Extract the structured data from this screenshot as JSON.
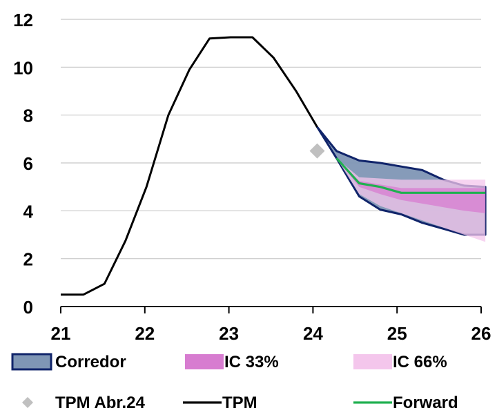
{
  "chart_data": {
    "type": "line",
    "xlim": [
      21,
      26
    ],
    "ylim": [
      0,
      12
    ],
    "x_ticks": [
      "21",
      "22",
      "23",
      "24",
      "25",
      "26"
    ],
    "y_ticks": [
      "0",
      "2",
      "4",
      "6",
      "8",
      "10",
      "12"
    ],
    "grid": "horizontal",
    "series": [
      {
        "name": "TPM",
        "kind": "line",
        "color": "#000000",
        "points": [
          [
            21.0,
            0.5
          ],
          [
            21.27,
            0.5
          ],
          [
            21.52,
            0.95
          ],
          [
            21.77,
            2.75
          ],
          [
            22.02,
            5.0
          ],
          [
            22.28,
            8.0
          ],
          [
            22.53,
            9.9
          ],
          [
            22.77,
            11.2
          ],
          [
            23.02,
            11.25
          ],
          [
            23.28,
            11.25
          ],
          [
            23.53,
            10.4
          ],
          [
            23.8,
            9.0
          ],
          [
            24.05,
            7.5
          ]
        ]
      },
      {
        "name": "TPM Abr.24",
        "kind": "marker",
        "color": "#c0c0c0",
        "points": [
          [
            24.05,
            6.5
          ]
        ]
      },
      {
        "name": "Forward",
        "kind": "line",
        "color": "#20b050",
        "points": [
          [
            24.28,
            6.2
          ],
          [
            24.55,
            5.15
          ],
          [
            24.8,
            5.0
          ],
          [
            25.05,
            4.75
          ],
          [
            25.3,
            4.75
          ],
          [
            25.55,
            4.75
          ],
          [
            25.8,
            4.75
          ],
          [
            26.05,
            4.75
          ]
        ]
      }
    ],
    "bands": [
      {
        "name": "Corredor",
        "color": "#7f96b5",
        "stroke": "#10246a",
        "x": [
          24.05,
          24.28,
          24.55,
          24.8,
          25.05,
          25.3,
          25.55,
          25.8,
          26.05
        ],
        "upper": [
          7.5,
          6.5,
          6.1,
          6.0,
          5.85,
          5.7,
          5.3,
          5.05,
          5.0
        ],
        "lower": [
          7.5,
          6.2,
          4.6,
          4.05,
          3.85,
          3.5,
          3.25,
          3.0,
          3.0
        ]
      },
      {
        "name": "IC 66%",
        "color": "#f4c6ec",
        "x": [
          24.28,
          24.55,
          24.8,
          25.05,
          25.3,
          25.55,
          25.8,
          26.05
        ],
        "upper": [
          6.2,
          5.4,
          5.35,
          5.3,
          5.3,
          5.3,
          5.3,
          5.3
        ],
        "lower": [
          6.2,
          4.7,
          4.2,
          3.9,
          3.6,
          3.3,
          3.0,
          2.7
        ]
      },
      {
        "name": "IC 33%",
        "color": "#d77cd0",
        "x": [
          24.28,
          24.55,
          24.8,
          25.05,
          25.3,
          25.55,
          25.8,
          26.05
        ],
        "upper": [
          6.2,
          5.25,
          5.1,
          4.95,
          4.95,
          4.95,
          4.95,
          4.95
        ],
        "lower": [
          6.2,
          5.0,
          4.7,
          4.45,
          4.3,
          4.15,
          4.0,
          3.9
        ]
      }
    ],
    "legend": {
      "placement": "bottom",
      "items": [
        {
          "label": "Corredor",
          "type": "band",
          "color": "#7f96b5",
          "stroke": "#10246a"
        },
        {
          "label": "IC 33%",
          "type": "band",
          "color": "#d77cd0"
        },
        {
          "label": "IC 66%",
          "type": "band",
          "color": "#f4c6ec"
        },
        {
          "label": "TPM Abr.24",
          "type": "marker",
          "color": "#c0c0c0"
        },
        {
          "label": "TPM",
          "type": "line",
          "color": "#000000"
        },
        {
          "label": "Forward",
          "type": "line",
          "color": "#20b050"
        }
      ]
    }
  }
}
